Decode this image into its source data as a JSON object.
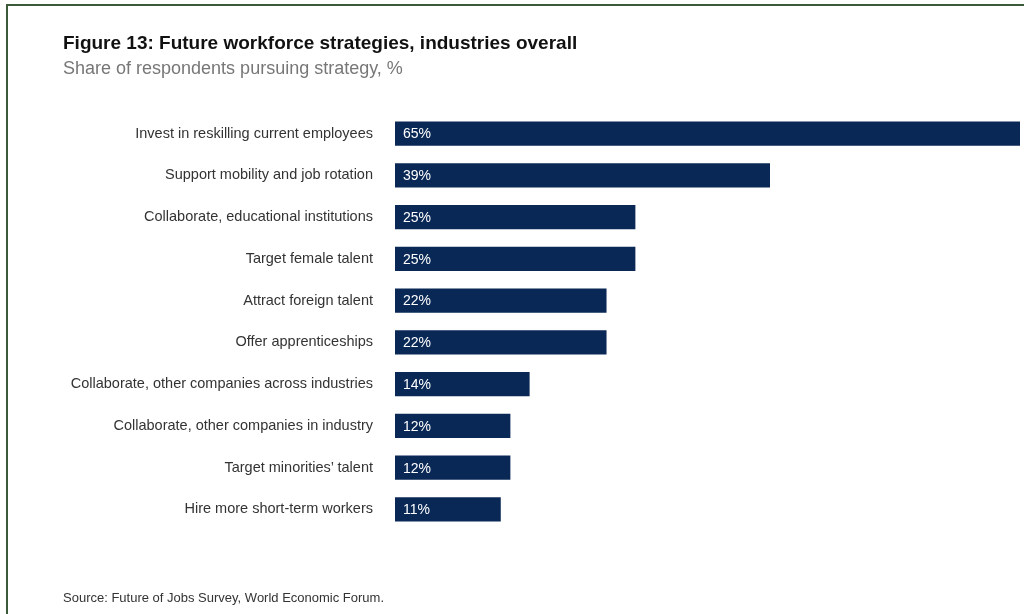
{
  "chart_data": {
    "type": "bar",
    "orientation": "horizontal",
    "title": "Figure 13: Future workforce strategies, industries overall",
    "subtitle": "Share of respondents pursuing strategy, %",
    "categories": [
      "Invest in reskilling current employees",
      "Support mobility and job rotation",
      "Collaborate, educational institutions",
      "Target female talent",
      "Attract foreign talent",
      "Offer apprenticeships",
      "Collaborate, other companies across industries",
      "Collaborate, other companies in industry",
      "Target minorities’ talent",
      "Hire more short-term workers"
    ],
    "values": [
      65,
      39,
      25,
      25,
      22,
      22,
      14,
      12,
      12,
      11
    ],
    "value_labels": [
      "65%",
      "39%",
      "25%",
      "25%",
      "22%",
      "22%",
      "14%",
      "12%",
      "12%",
      "11%"
    ],
    "color": "#0a2856",
    "legend": false,
    "annotations": [
      "Source: Future of Jobs Survey, World Economic Forum."
    ]
  }
}
